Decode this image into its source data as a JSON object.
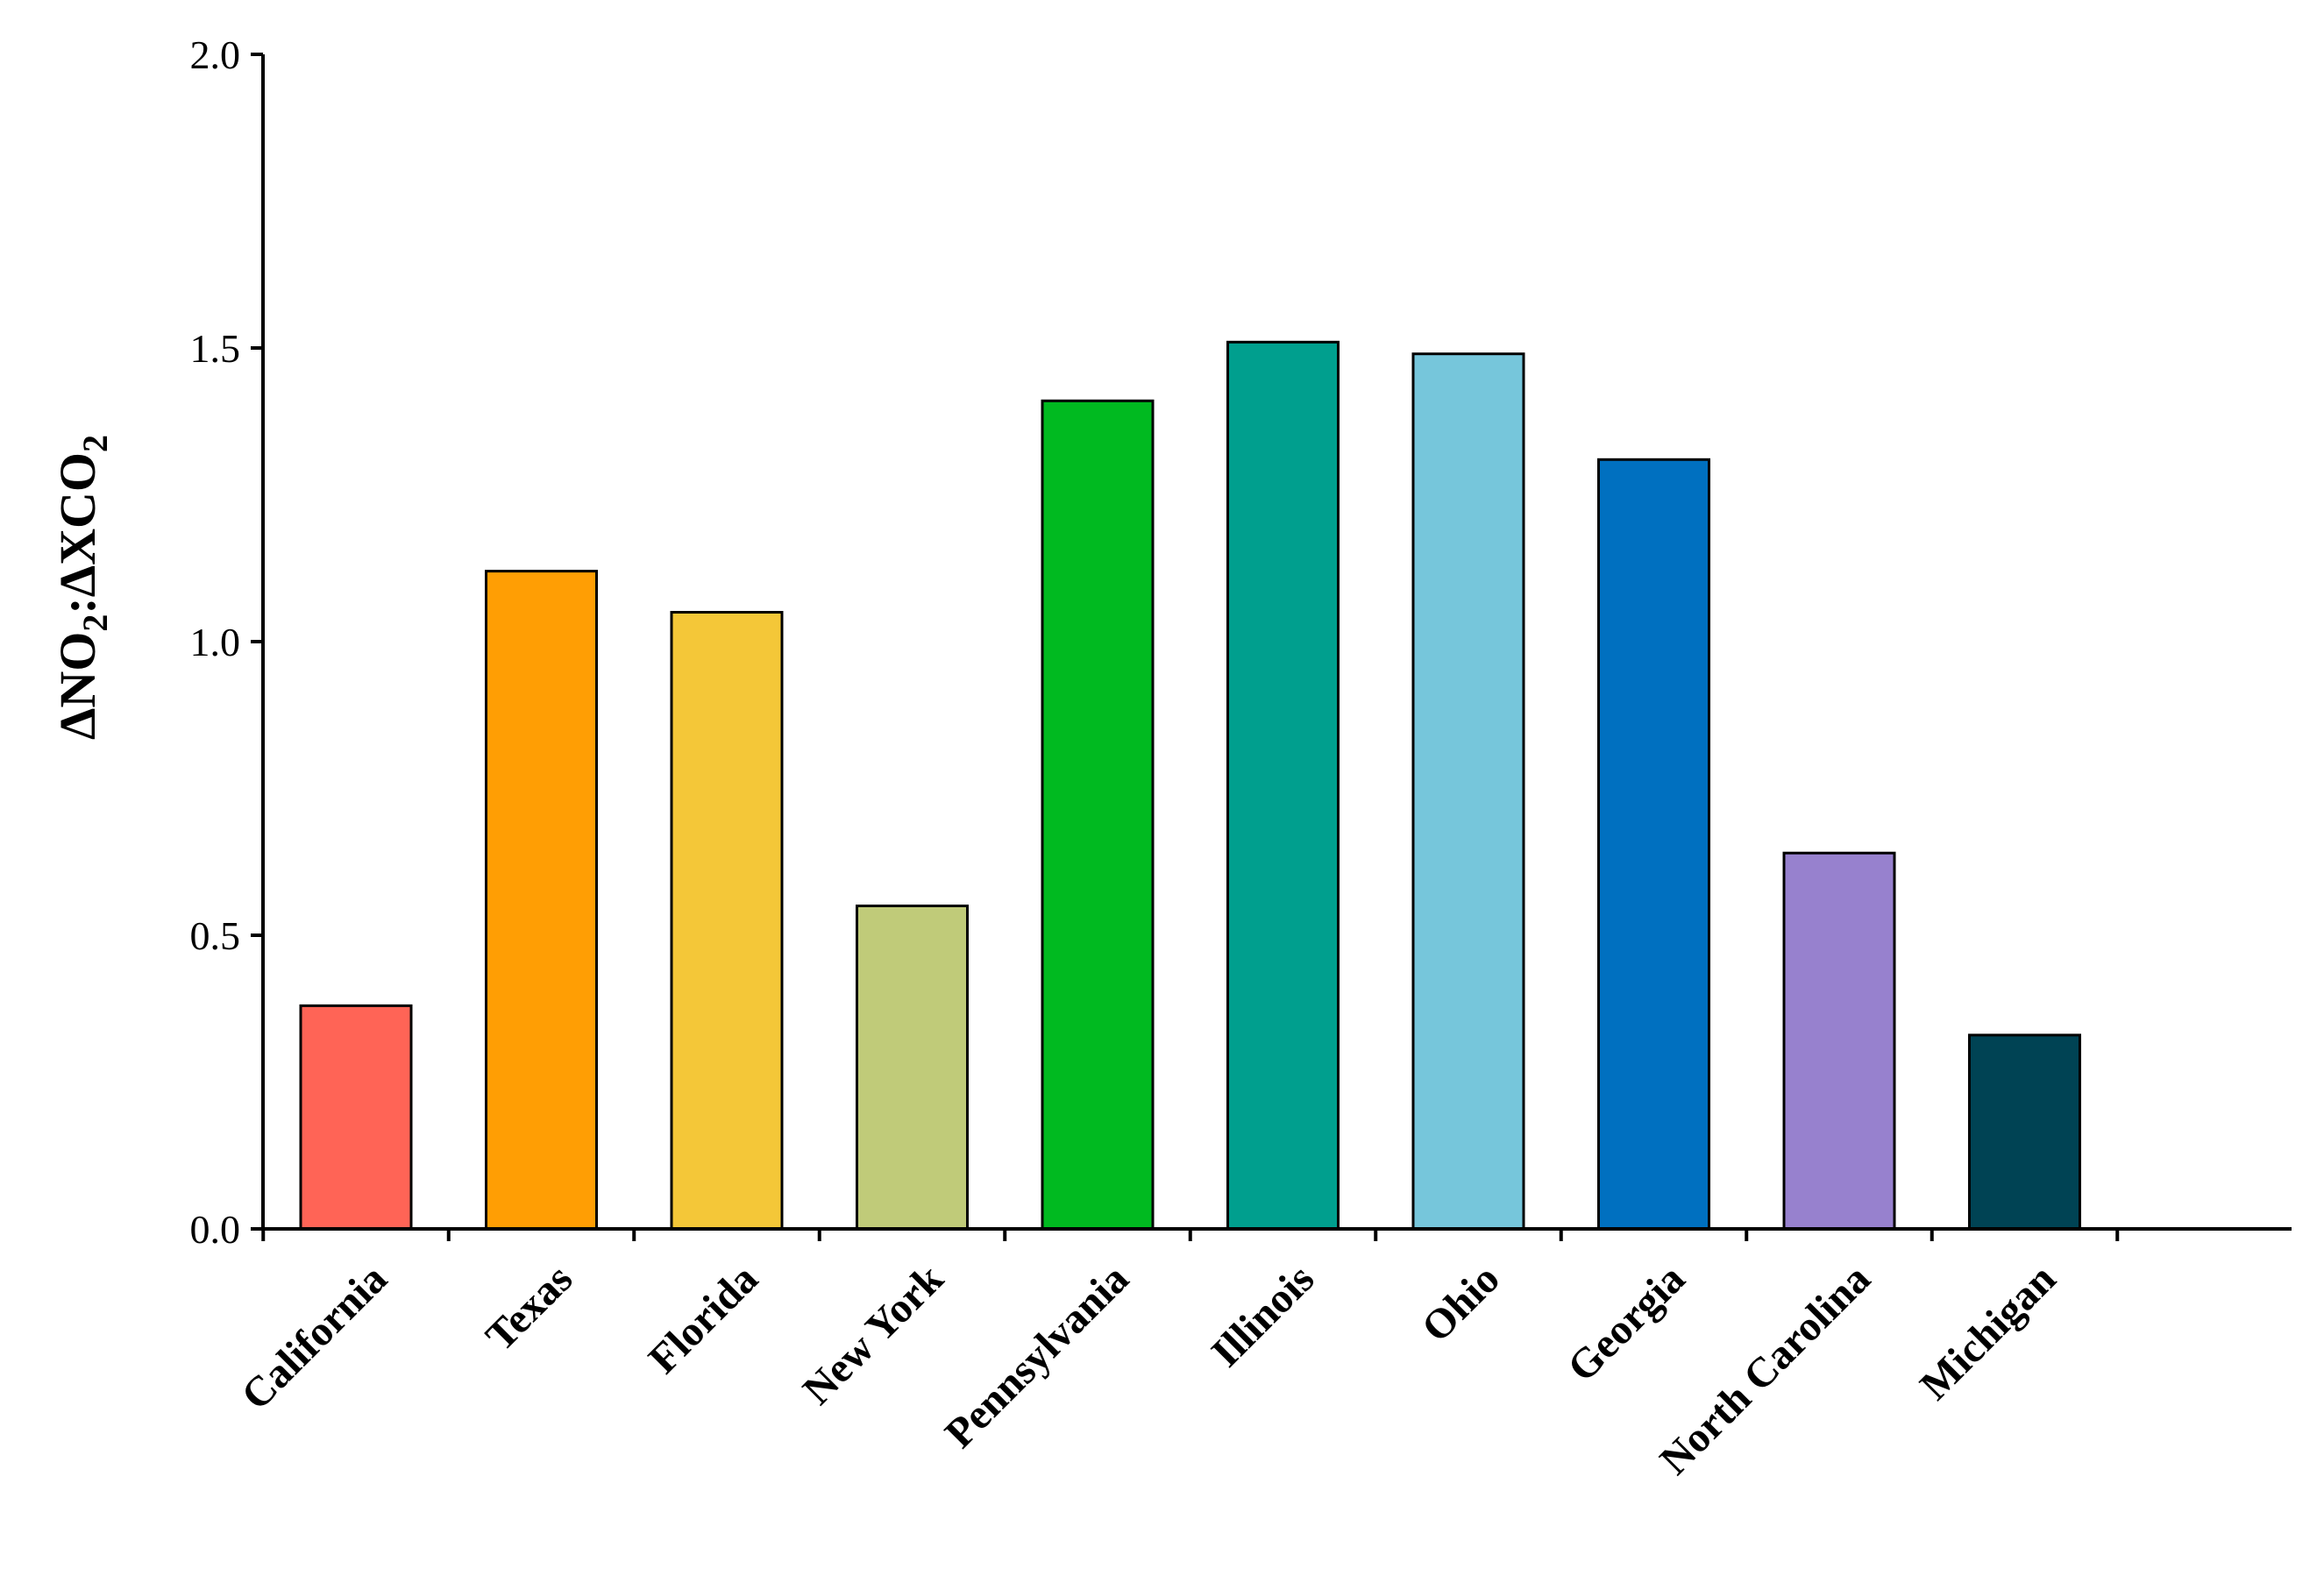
{
  "chart_data": {
    "type": "bar",
    "categories": [
      "California",
      "Texas",
      "Florida",
      "New York",
      "Pennsylvania",
      "Illinois",
      "Ohio",
      "Georgia",
      "North Carolina",
      "Michigan"
    ],
    "values": [
      0.38,
      1.12,
      1.05,
      0.55,
      1.41,
      1.51,
      1.49,
      1.31,
      0.64,
      0.33
    ],
    "colors": [
      "#FF6456",
      "#FF9E04",
      "#F4C738",
      "#C0CB79",
      "#00BA20",
      "#009F8E",
      "#76C6DB",
      "#0070C0",
      "#9781CE",
      "#004354"
    ],
    "ylabel": "ΔNO₂:ΔXCO₂",
    "ylabel_parts": {
      "delta1": "ΔNO",
      "sub1": "2",
      "colon_delta": ":ΔXCO",
      "sub2": "2"
    },
    "ylim": [
      0,
      2.0
    ],
    "yticks": [
      "0.0",
      "0.5",
      "1.0",
      "1.5",
      "2.0"
    ],
    "grid": false
  }
}
